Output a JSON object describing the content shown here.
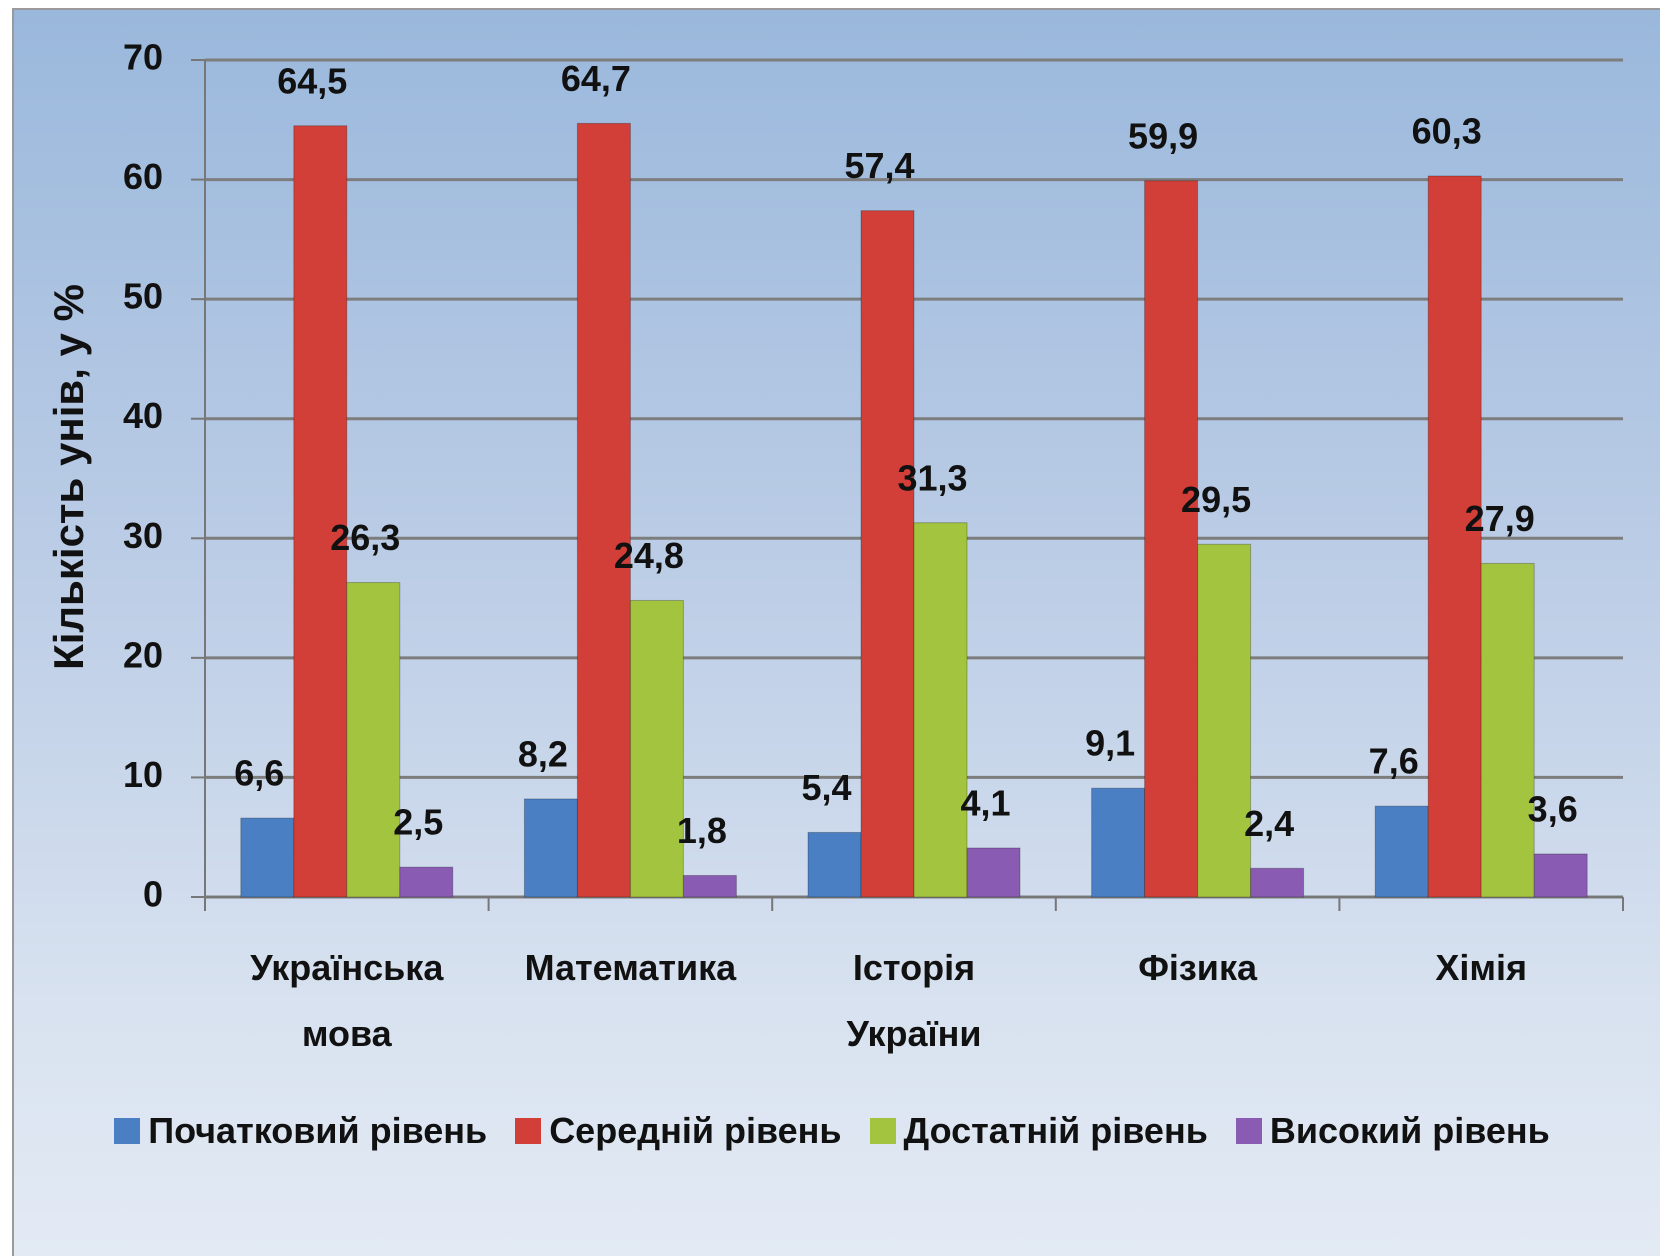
{
  "chart_data": {
    "type": "bar",
    "y_label": "Кількість унів, у %",
    "categories": [
      "Українська мова",
      "Математика",
      "Історія України",
      "Фізика",
      "Хімія"
    ],
    "series": [
      {
        "name": "Початковий рівень",
        "color": "#4a7fc4",
        "values": [
          6.6,
          8.2,
          5.4,
          9.1,
          7.6
        ],
        "value_labels": [
          "6,6",
          "8,2",
          "5,4",
          "9,1",
          "7,6"
        ]
      },
      {
        "name": "Середній рівень",
        "color": "#d23f38",
        "values": [
          64.5,
          64.7,
          57.4,
          59.9,
          60.3
        ],
        "value_labels": [
          "64,5",
          "64,7",
          "57,4",
          "59,9",
          "60,3"
        ]
      },
      {
        "name": "Достатній рівень",
        "color": "#a3c43e",
        "values": [
          26.3,
          24.8,
          31.3,
          29.5,
          27.9
        ],
        "value_labels": [
          "26,3",
          "24,8",
          "31,3",
          "29,5",
          "27,9"
        ]
      },
      {
        "name": "Високий рівень",
        "color": "#8a5bb3",
        "values": [
          2.5,
          1.8,
          4.1,
          2.4,
          3.6
        ],
        "value_labels": [
          "2,5",
          "1,8",
          "4,1",
          "2,4",
          "3,6"
        ]
      }
    ],
    "ylim": [
      0,
      70
    ],
    "yticks": [
      0,
      10,
      20,
      30,
      40,
      50,
      60,
      70
    ],
    "grid": true,
    "legend": "bottom"
  }
}
